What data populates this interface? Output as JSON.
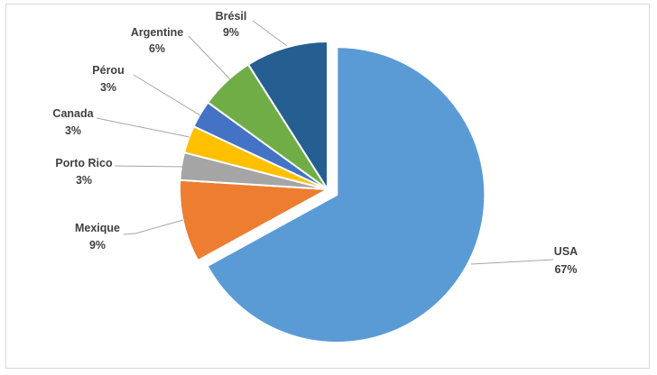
{
  "chart_data": {
    "type": "pie",
    "title": "",
    "slices": [
      {
        "name": "USA",
        "value": 67,
        "label": "67%",
        "color": "#5b9bd5",
        "exploded": true
      },
      {
        "name": "Mexique",
        "value": 9,
        "label": "9%",
        "color": "#ed7d31"
      },
      {
        "name": "Porto Rico",
        "value": 3,
        "label": "3%",
        "color": "#a5a5a5"
      },
      {
        "name": "Canada",
        "value": 3,
        "label": "3%",
        "color": "#ffc000"
      },
      {
        "name": "Pérou",
        "value": 3,
        "label": "3%",
        "color": "#4472c4"
      },
      {
        "name": "Argentine",
        "value": 6,
        "label": "6%",
        "color": "#70ad47"
      },
      {
        "name": "Brésil",
        "value": 9,
        "label": "9%",
        "color": "#255e91"
      }
    ],
    "start": "12 o'clock",
    "direction": "clockwise",
    "legend": "none",
    "data_labels": "outside with leader lines"
  }
}
